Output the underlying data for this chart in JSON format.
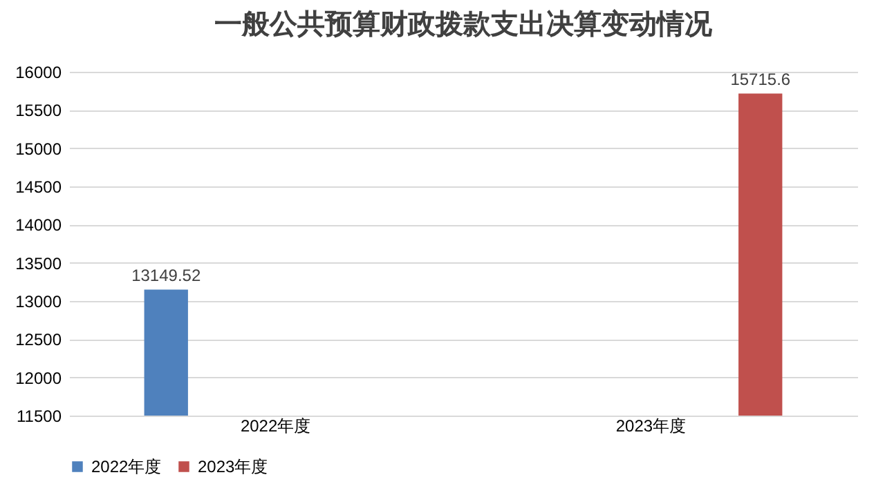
{
  "chart_data": {
    "type": "bar",
    "title": "一般公共预算财政拨款支出决算变动情况",
    "categories": [
      "2022年度",
      "2023年度"
    ],
    "series": [
      {
        "name": "2022年度",
        "color": "#4f81bd",
        "values": [
          13149.52,
          null
        ]
      },
      {
        "name": "2023年度",
        "color": "#c0504d",
        "values": [
          null,
          15715.6
        ]
      }
    ],
    "ylim": [
      11500,
      16000
    ],
    "yticks": [
      11500,
      12000,
      12500,
      13000,
      13500,
      14000,
      14500,
      15000,
      15500,
      16000
    ],
    "grid": "y",
    "legend": "bottom",
    "data_labels": true
  }
}
